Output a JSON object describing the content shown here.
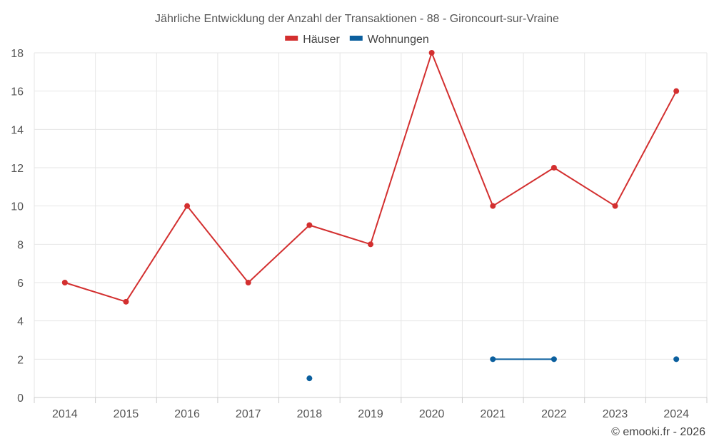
{
  "chart_data": {
    "type": "line",
    "title": "Jährliche Entwicklung der Anzahl der Transaktionen - 88 - Gironcourt-sur-Vraine",
    "x": [
      "2014",
      "2015",
      "2016",
      "2017",
      "2018",
      "2019",
      "2020",
      "2021",
      "2022",
      "2023",
      "2024"
    ],
    "series": [
      {
        "name": "Häuser",
        "color": "#d32f2f",
        "values": [
          6,
          5,
          10,
          6,
          9,
          8,
          18,
          10,
          12,
          10,
          16
        ]
      },
      {
        "name": "Wohnungen",
        "color": "#0b5f9e",
        "values": [
          null,
          null,
          null,
          null,
          1,
          null,
          null,
          2,
          2,
          null,
          2
        ]
      }
    ],
    "ylim": [
      0,
      18
    ],
    "yticks": [
      0,
      2,
      4,
      6,
      8,
      10,
      12,
      14,
      16,
      18
    ],
    "grid": true,
    "legend_position": "top-center"
  },
  "credit": "© emooki.fr - 2026"
}
